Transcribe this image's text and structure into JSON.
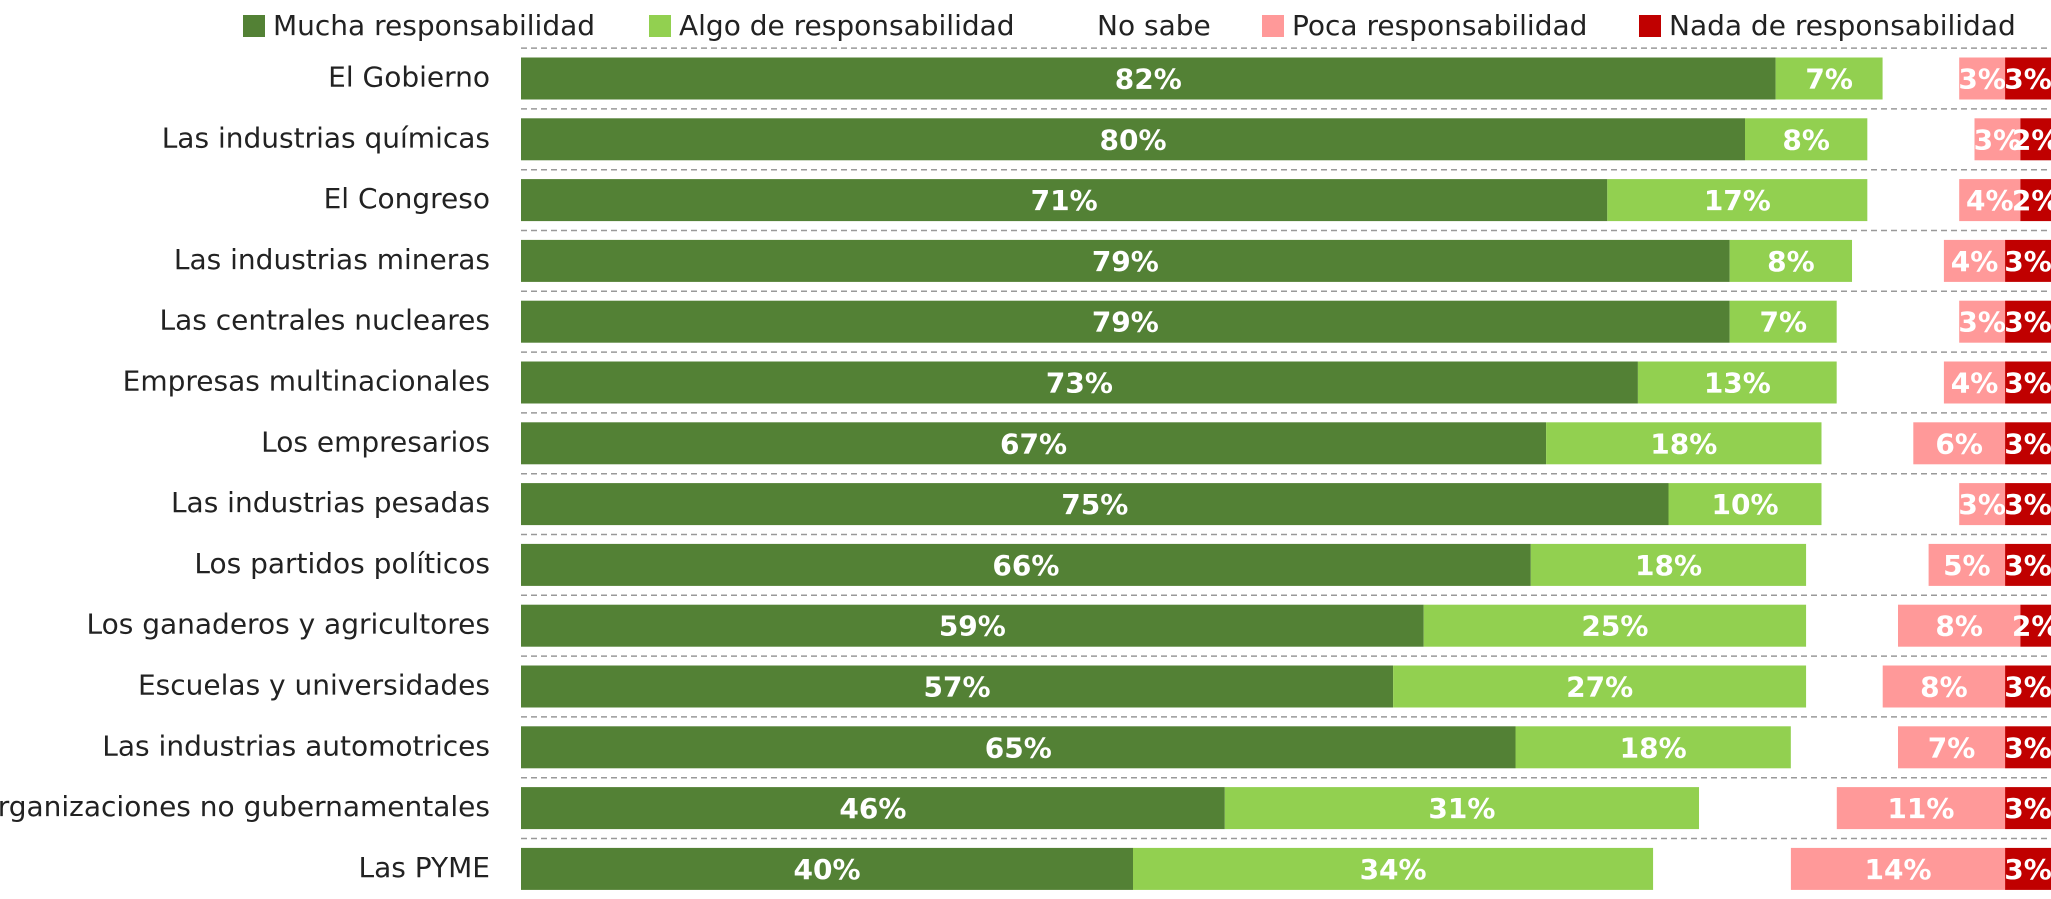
{
  "chart_data": {
    "type": "stacked-bar-horizontal",
    "categories": [
      "El Gobierno",
      "Las industrias químicas",
      "El Congreso",
      "Las industrias mineras",
      "Las centrales nucleares",
      "Empresas multinacionales",
      "Los empresarios",
      "Las industrias pesadas",
      "Los partidos políticos",
      "Los ganaderos y agricultores",
      "Escuelas y universidades",
      "Las industrias automotrices",
      "Organizaciones no gubernamentales",
      "Las PYME"
    ],
    "series": [
      {
        "name": "Mucha responsabilidad",
        "color": "#538135",
        "values": [
          82,
          80,
          71,
          79,
          79,
          73,
          67,
          75,
          66,
          59,
          57,
          65,
          46,
          40
        ],
        "value_labels": [
          "82%",
          "80%",
          "71%",
          "79%",
          "79%",
          "73%",
          "67%",
          "75%",
          "66%",
          "59%",
          "57%",
          "65%",
          "46%",
          "40%"
        ]
      },
      {
        "name": "Algo de responsabilidad",
        "color": "#92d050",
        "values": [
          7,
          8,
          17,
          8,
          7,
          13,
          18,
          10,
          18,
          25,
          27,
          18,
          31,
          34
        ],
        "value_labels": [
          "7%",
          "8%",
          "17%",
          "8%",
          "7%",
          "13%",
          "18%",
          "10%",
          "18%",
          "25%",
          "27%",
          "18%",
          "31%",
          "34%"
        ]
      },
      {
        "name": "No sabe",
        "color": "#ffffff",
        "values": [
          5,
          7,
          6,
          6,
          8,
          7,
          6,
          9,
          8,
          6,
          5,
          7,
          9,
          9
        ]
      },
      {
        "name": "Poca responsabilidad",
        "color": "#ff9999",
        "values": [
          3,
          3,
          4,
          4,
          3,
          4,
          6,
          3,
          5,
          8,
          8,
          7,
          11,
          14
        ],
        "value_labels": [
          "3%",
          "3%",
          "4%",
          "4%",
          "3%",
          "4%",
          "6%",
          "3%",
          "5%",
          "8%",
          "8%",
          "7%",
          "11%",
          "14%"
        ]
      },
      {
        "name": "Nada de responsabilidad",
        "color": "#c00000",
        "values": [
          3,
          2,
          2,
          3,
          3,
          3,
          3,
          3,
          3,
          2,
          3,
          3,
          3,
          3
        ],
        "value_labels": [
          "3%",
          "2%",
          "2%",
          "3%",
          "3%",
          "3%",
          "3%",
          "3%",
          "3%",
          "2%",
          "3%",
          "3%",
          "3%",
          "3%"
        ]
      }
    ],
    "legend": "top"
  }
}
